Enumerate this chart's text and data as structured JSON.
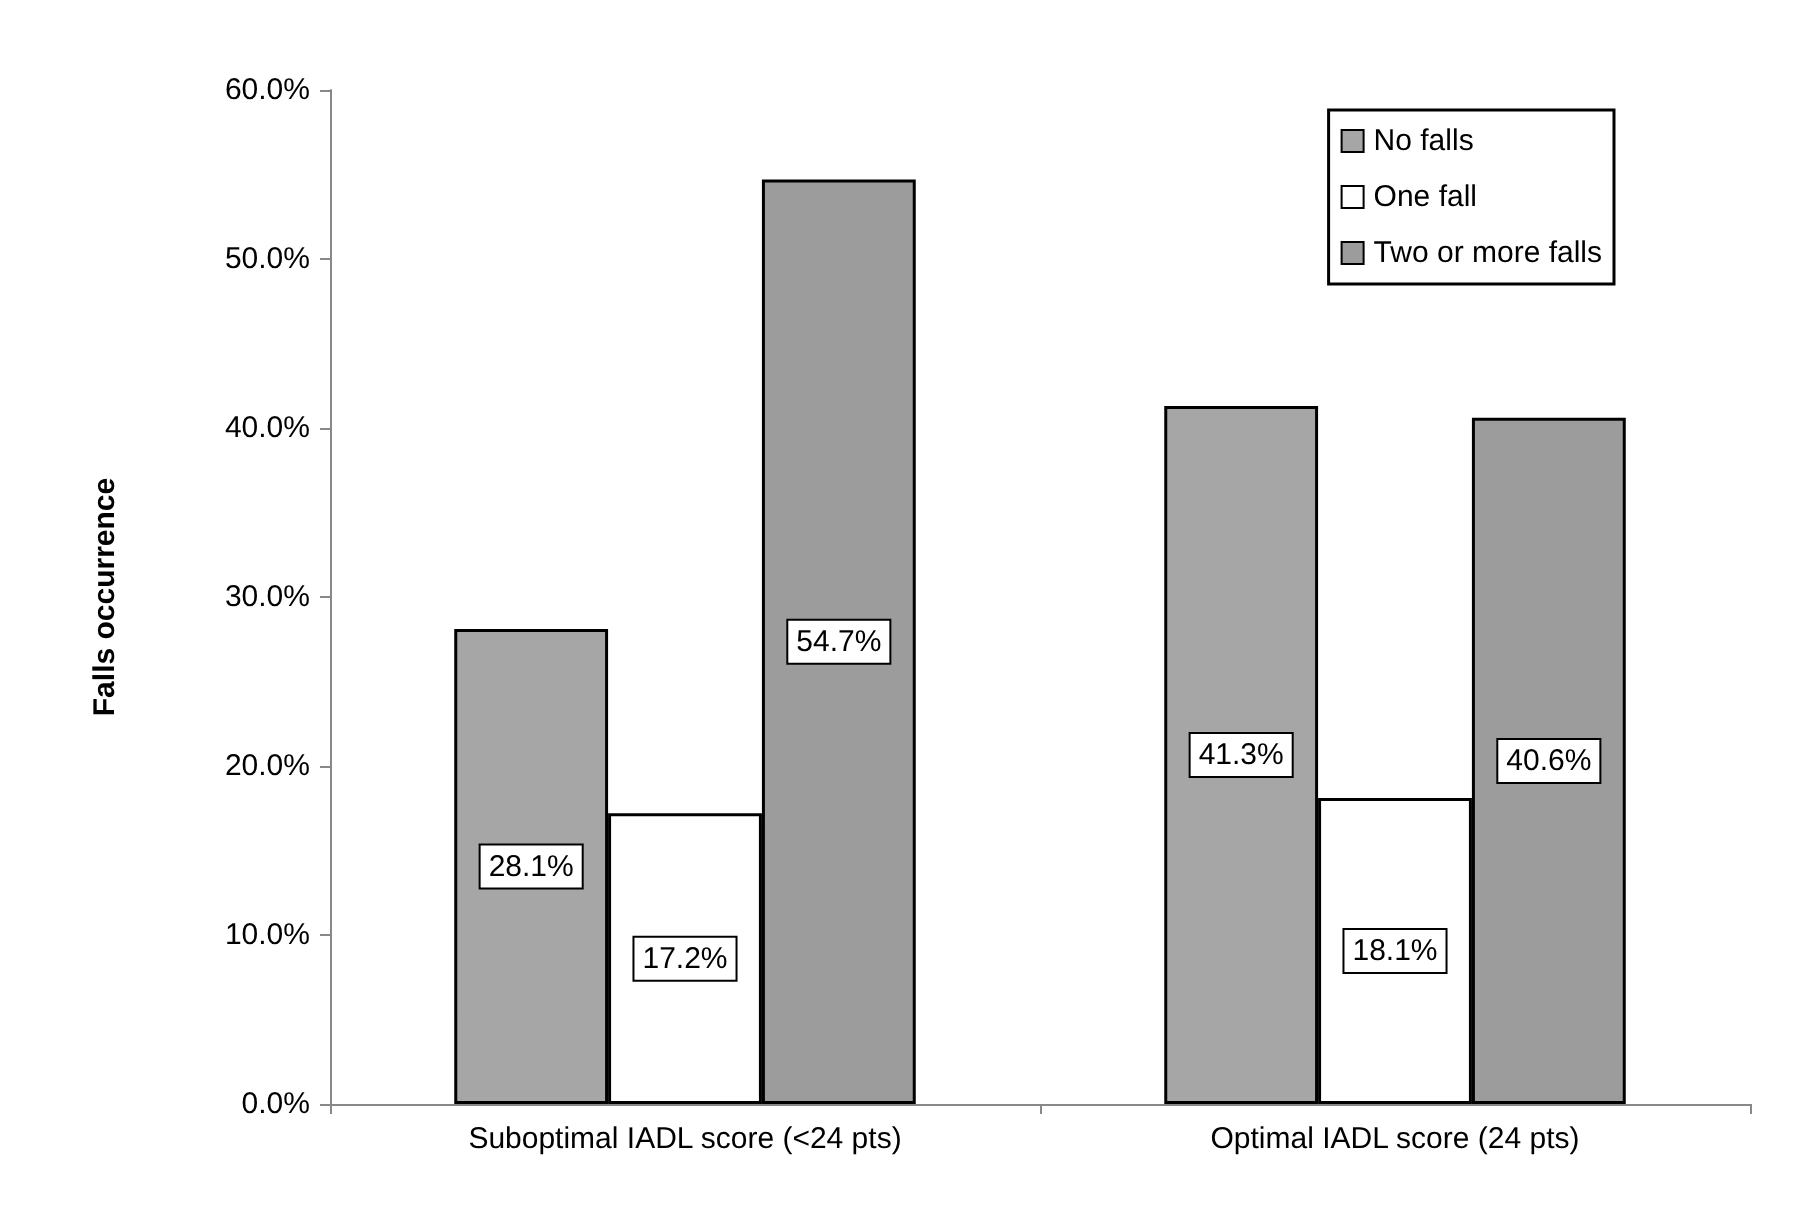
{
  "chart_data": {
    "type": "bar",
    "ylabel": "Falls occurrence",
    "categories": [
      "Suboptimal IADL score (<24 pts)",
      "Optimal IADL score (24 pts)"
    ],
    "series": [
      {
        "name": "No falls",
        "color": "#a6a6a6",
        "values": [
          28.1,
          41.3
        ],
        "value_labels": [
          "28.1%",
          "41.3%"
        ]
      },
      {
        "name": "One fall",
        "color": "#ffffff",
        "values": [
          17.2,
          18.1
        ],
        "value_labels": [
          "17.2%",
          "18.1%"
        ]
      },
      {
        "name": "Two or more falls",
        "color": "#9c9c9c",
        "values": [
          54.7,
          40.6
        ],
        "value_labels": [
          "54.7%",
          "40.6%"
        ]
      }
    ],
    "ylim": [
      0,
      60
    ],
    "yticks": [
      {
        "value": 0,
        "label": "0.0%"
      },
      {
        "value": 10,
        "label": "10.0%"
      },
      {
        "value": 20,
        "label": "20.0%"
      },
      {
        "value": 30,
        "label": "30.0%"
      },
      {
        "value": 40,
        "label": "40.0%"
      },
      {
        "value": 50,
        "label": "50.0%"
      },
      {
        "value": 60,
        "label": "60.0%"
      }
    ],
    "grid": false,
    "legend": "top right"
  }
}
